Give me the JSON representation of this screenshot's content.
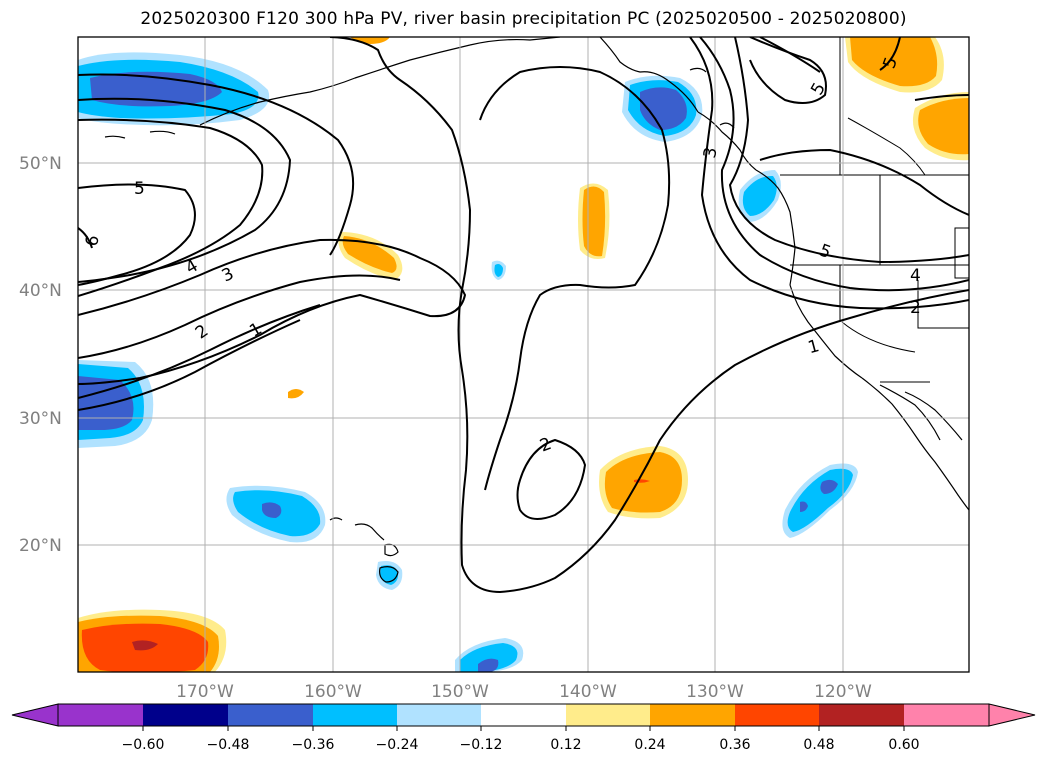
{
  "title": "2025020300 F120 300 hPa PV, river basin precipitation PC (2025020500 - 2025020800)",
  "map": {
    "lat_labels": [
      "50°N",
      "40°N",
      "30°N",
      "20°N"
    ],
    "lon_labels": [
      "170°W",
      "160°W",
      "150°W",
      "140°W",
      "130°W",
      "120°W"
    ],
    "gridline_color": "#b0b0b0",
    "contour_labels": [
      "5",
      "6",
      "4",
      "3",
      "2",
      "1",
      "2",
      "3",
      "5",
      "5",
      "4",
      "2",
      "1",
      "5"
    ]
  },
  "colorbar": {
    "tick_labels": [
      "−0.60",
      "−0.48",
      "−0.36",
      "−0.24",
      "−0.12",
      "0.12",
      "0.24",
      "0.36",
      "0.48",
      "0.60"
    ],
    "colors": [
      "#9933cc",
      "#00008b",
      "#3a5fcd",
      "#00bfff",
      "#b0e2ff",
      "#ffffff",
      "#ffec8b",
      "#ffa500",
      "#ff4500",
      "#b22222",
      "#ff82ab"
    ]
  }
}
